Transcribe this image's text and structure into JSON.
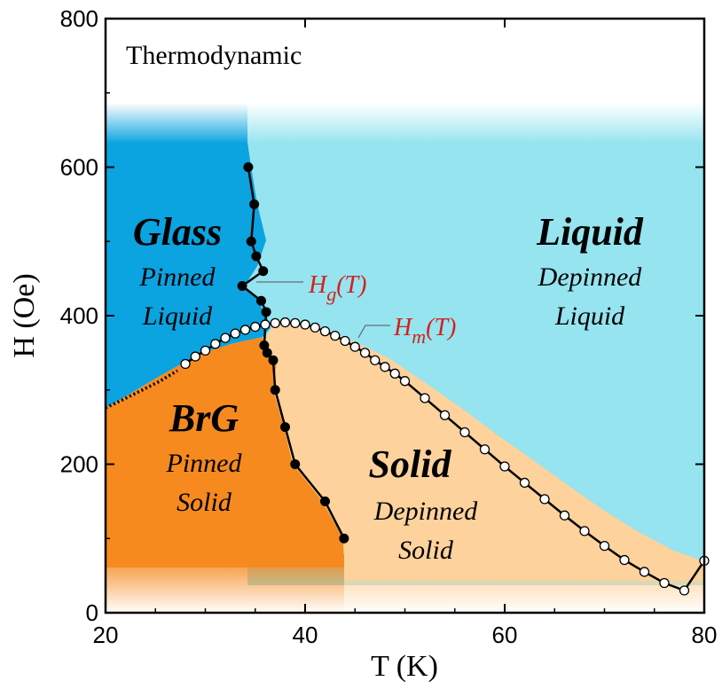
{
  "chart_data": {
    "type": "scatter",
    "title": "Thermodynamic",
    "xlabel": "T (K)",
    "ylabel": "H (Oe)",
    "xlim": [
      20,
      80
    ],
    "ylim": [
      0,
      800
    ],
    "xticks": [
      "20",
      "40",
      "60",
      "80"
    ],
    "yticks": [
      "0",
      "200",
      "400",
      "600",
      "800"
    ],
    "grid": false,
    "series": [
      {
        "name": "Hg(T)",
        "label_main": "H",
        "label_sub": "g",
        "label_tail": "(T)",
        "color": "#000000",
        "marker": "filled",
        "x": [
          34.3,
          34.9,
          35.1,
          35.8,
          34.6,
          33.7,
          35.6,
          36.1,
          35.9,
          36.2,
          36.8,
          37.0,
          38.0,
          39.0,
          42.0,
          43.9
        ],
        "y": [
          600,
          550,
          480,
          460,
          500,
          440,
          420,
          405,
          360,
          350,
          340,
          300,
          250,
          200,
          150,
          100
        ]
      },
      {
        "name": "Hm(T)",
        "label_main": "H",
        "label_sub": "m",
        "label_tail": "(T)",
        "color": "#ffffff",
        "marker": "open",
        "x": [
          28,
          29,
          30,
          31,
          32,
          33,
          34,
          35,
          36,
          37,
          38,
          39,
          40,
          41,
          42,
          43,
          44,
          45,
          46,
          47,
          48,
          49,
          50,
          52,
          54,
          56,
          58,
          60,
          62,
          64,
          66,
          68,
          70,
          72,
          74,
          76,
          78,
          80
        ],
        "y": [
          335,
          345,
          353,
          362,
          370,
          376,
          381,
          385,
          388,
          390,
          391,
          390,
          388,
          384,
          379,
          373,
          366,
          358,
          350,
          340,
          331,
          322,
          312,
          289,
          266,
          243,
          220,
          197,
          175,
          153,
          131,
          110,
          90,
          71,
          55,
          40,
          30,
          70
        ]
      }
    ],
    "regions": [
      {
        "title": "Glass",
        "subtitle": [
          "Pinned",
          "Liquid"
        ],
        "color": "#0ba3e0"
      },
      {
        "title": "Liquid",
        "subtitle": [
          "Depinned",
          "Liquid"
        ],
        "color": "#95e4ef"
      },
      {
        "title": "BrG",
        "subtitle": [
          "Pinned",
          "Solid"
        ],
        "color": "#f68a1f"
      },
      {
        "title": "Solid",
        "subtitle": [
          "Depinned",
          "Solid"
        ],
        "color": "#fdd29c"
      }
    ]
  }
}
